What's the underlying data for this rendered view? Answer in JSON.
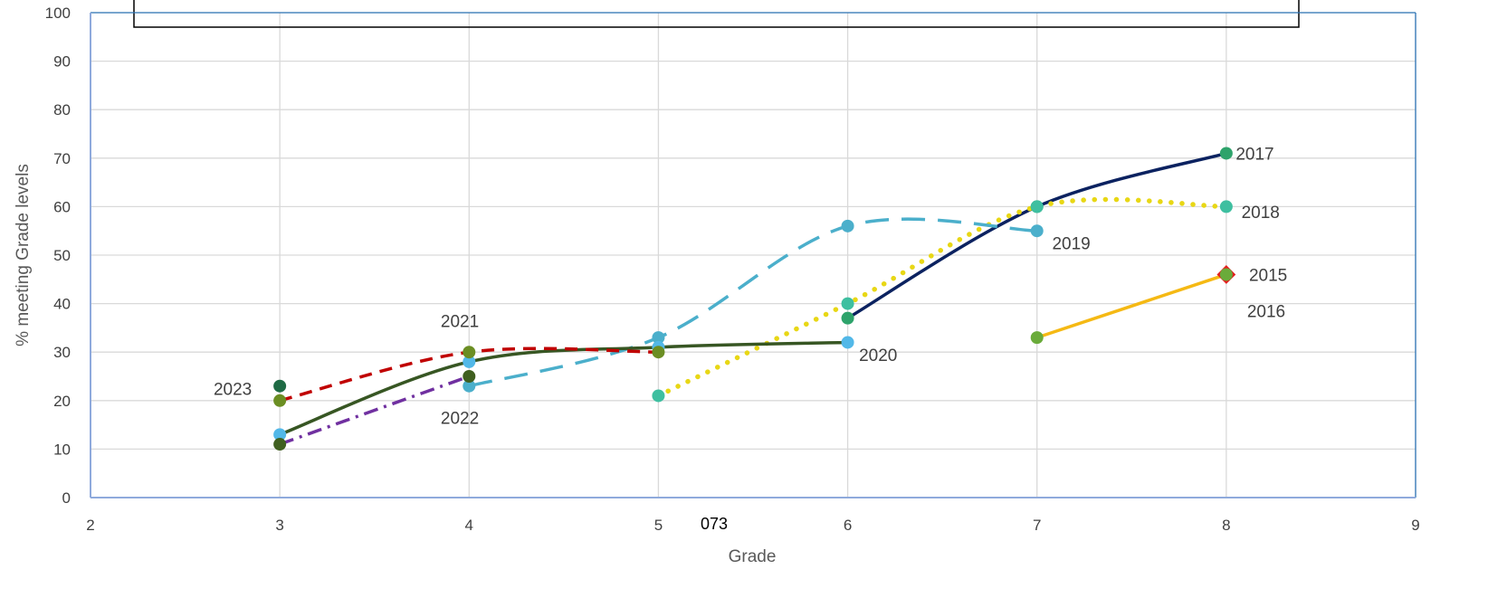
{
  "chart_data": {
    "type": "line",
    "title": "",
    "xlabel": "Grade",
    "ylabel": "% meeting Grade levels",
    "xlim": [
      2,
      9
    ],
    "ylim": [
      0,
      100
    ],
    "xticks": [
      2,
      3,
      4,
      5,
      6,
      7,
      8,
      9
    ],
    "yticks": [
      0,
      10,
      20,
      30,
      40,
      50,
      60,
      70,
      80,
      90,
      100
    ],
    "grid": true,
    "legend": "none",
    "annotation": "073",
    "series": [
      {
        "name": "2015",
        "x": [
          8
        ],
        "y": [
          46
        ],
        "color": "#E41E1E",
        "line": "none",
        "marker_color": "#6AAB3A",
        "marker": "diamond"
      },
      {
        "name": "2016",
        "x": [
          7,
          8
        ],
        "y": [
          33,
          46
        ],
        "color": "#F5B914",
        "line": "solid",
        "marker_color": "#6AAB3A"
      },
      {
        "name": "2017",
        "x": [
          6,
          7,
          8
        ],
        "y": [
          37,
          60,
          71
        ],
        "color": "#0B2260",
        "line": "solid",
        "marker_color": "#2EA36B"
      },
      {
        "name": "2018",
        "x": [
          5,
          6,
          7,
          8
        ],
        "y": [
          21,
          40,
          60,
          60
        ],
        "color": "#E8D715",
        "line": "dotted",
        "marker_color": "#3EBFA0"
      },
      {
        "name": "2019",
        "x": [
          4,
          5,
          6,
          7
        ],
        "y": [
          23,
          33,
          56,
          55
        ],
        "color": "#4BAFCB",
        "line": "longdash",
        "marker_color": "#4BAFCB"
      },
      {
        "name": "2020",
        "x": [
          3,
          4,
          5,
          6
        ],
        "y": [
          13,
          28,
          31,
          32
        ],
        "color": "#375623",
        "line": "solid",
        "marker_color": "#52B8E8"
      },
      {
        "name": "2021",
        "x": [
          3,
          4,
          5
        ],
        "y": [
          20,
          30,
          30
        ],
        "color": "#C00000",
        "line": "dashed",
        "marker_color": "#6B8E23"
      },
      {
        "name": "2022",
        "x": [
          3,
          4
        ],
        "y": [
          11,
          25
        ],
        "color": "#7030A0",
        "line": "dashdot",
        "marker_color": "#3F5F1F"
      },
      {
        "name": "2023",
        "x": [
          3
        ],
        "y": [
          23
        ],
        "color": "#1F6B45",
        "line": "none",
        "marker_color": "#1F6B45"
      }
    ],
    "series_labels": [
      {
        "text": "2017",
        "x": 8.05,
        "y": 71
      },
      {
        "text": "2018",
        "x": 8.08,
        "y": 59
      },
      {
        "text": "2019",
        "x": 7.08,
        "y": 52.5
      },
      {
        "text": "2015",
        "x": 8.12,
        "y": 46
      },
      {
        "text": "2016",
        "x": 8.11,
        "y": 38.5
      },
      {
        "text": "2021",
        "x": 3.85,
        "y": 36.5
      },
      {
        "text": "2020",
        "x": 6.06,
        "y": 29.5
      },
      {
        "text": "2023",
        "x": 2.65,
        "y": 22.5
      },
      {
        "text": "2022",
        "x": 3.85,
        "y": 16.5
      }
    ]
  }
}
